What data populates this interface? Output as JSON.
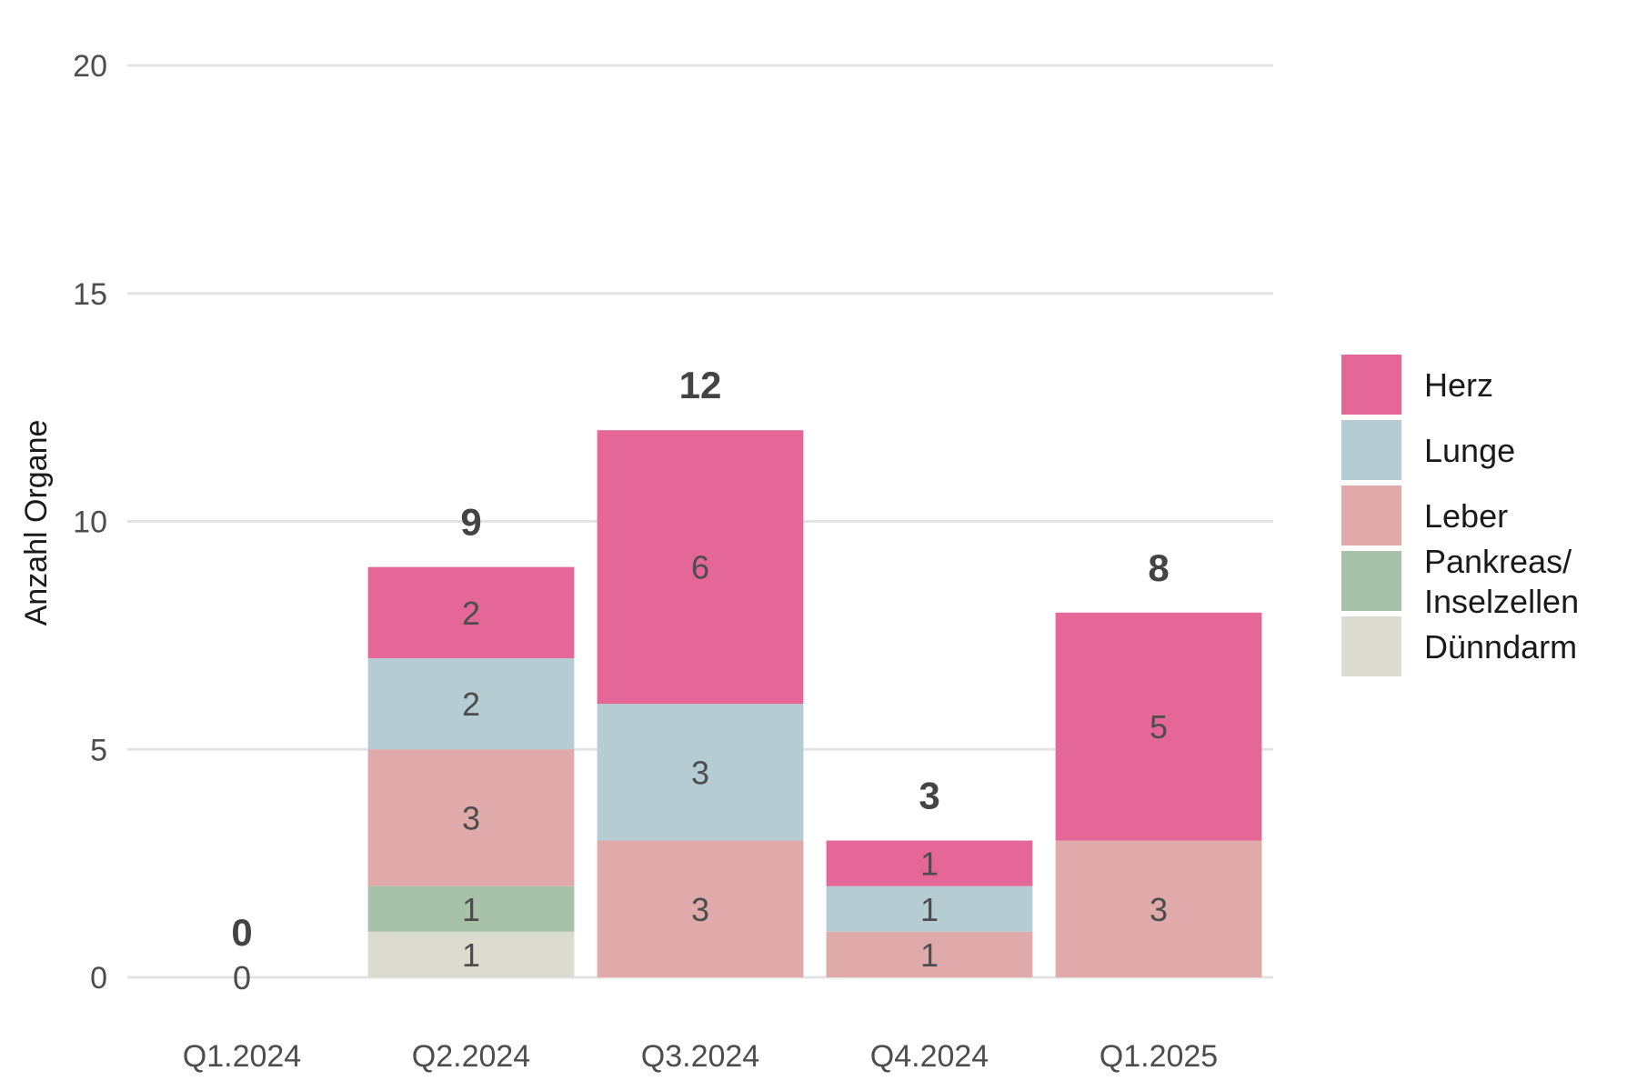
{
  "chart_data": {
    "type": "bar",
    "stacked": true,
    "ylabel": "Anzahl Organe",
    "xlabel": "",
    "ylim": [
      0,
      20
    ],
    "yticks": [
      0,
      5,
      10,
      15,
      20
    ],
    "grid": "horizontal",
    "legend_position": "right",
    "categories": [
      "Q1.2024",
      "Q2.2024",
      "Q3.2024",
      "Q4.2024",
      "Q1.2025"
    ],
    "totals": [
      0,
      9,
      12,
      3,
      8
    ],
    "series": [
      {
        "name": "Dünndarm",
        "color": "#dcdbd0",
        "values": [
          0,
          1,
          0,
          0,
          0
        ]
      },
      {
        "name": "Pankreas/ Inselzellen",
        "legend_lines": [
          "Pankreas/",
          "Inselzellen"
        ],
        "color": "#a8c2aa",
        "values": [
          0,
          1,
          0,
          0,
          0
        ]
      },
      {
        "name": "Leber",
        "color": "#e0aaaa",
        "values": [
          0,
          3,
          3,
          1,
          3
        ]
      },
      {
        "name": "Lunge",
        "color": "#b5cdd2",
        "values": [
          0,
          2,
          3,
          1,
          0
        ]
      },
      {
        "name": "Herz",
        "color": "#e56798",
        "values": [
          0,
          2,
          6,
          1,
          5
        ]
      }
    ],
    "legend_order": [
      "Herz",
      "Lunge",
      "Leber",
      "Pankreas/ Inselzellen",
      "Dünndarm"
    ],
    "zero_labels": [
      "0",
      "",
      "",
      "",
      ""
    ]
  }
}
